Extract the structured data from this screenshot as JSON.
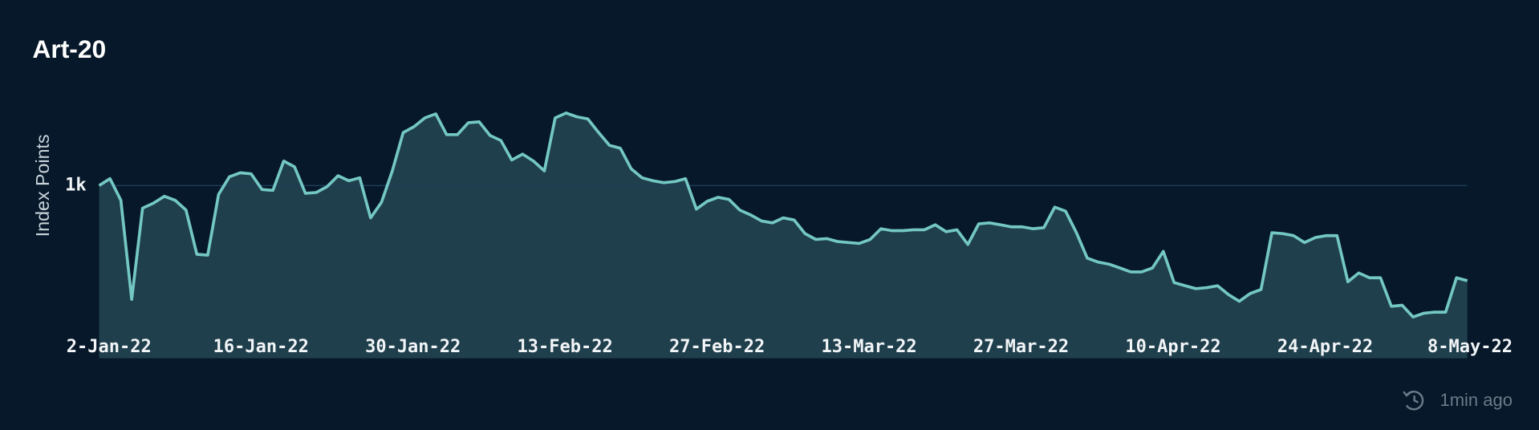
{
  "chart_data": {
    "type": "area",
    "title": "Art-20",
    "y_label": "Index Points",
    "footer": "1min ago",
    "color": "#74c8c3",
    "fill": "#1f3f4c",
    "grid": true,
    "ylim": [
      0,
      1550
    ],
    "yticks": [
      {
        "value": 1000,
        "label": "1k"
      }
    ],
    "xlim": [
      "2022-01-02",
      "2022-05-08"
    ],
    "xticks": [
      {
        "value": "2022-01-02",
        "label": "2-Jan-22"
      },
      {
        "value": "2022-01-16",
        "label": "16-Jan-22"
      },
      {
        "value": "2022-01-30",
        "label": "30-Jan-22"
      },
      {
        "value": "2022-02-13",
        "label": "13-Feb-22"
      },
      {
        "value": "2022-02-27",
        "label": "27-Feb-22"
      },
      {
        "value": "2022-03-13",
        "label": "13-Mar-22"
      },
      {
        "value": "2022-03-27",
        "label": "27-Mar-22"
      },
      {
        "value": "2022-04-10",
        "label": "10-Apr-22"
      },
      {
        "value": "2022-04-24",
        "label": "24-Apr-22"
      },
      {
        "value": "2022-05-08",
        "label": "8-May-22"
      }
    ],
    "x": [
      "2022-01-02",
      "2022-01-03",
      "2022-01-04",
      "2022-01-05",
      "2022-01-06",
      "2022-01-07",
      "2022-01-08",
      "2022-01-09",
      "2022-01-10",
      "2022-01-11",
      "2022-01-12",
      "2022-01-13",
      "2022-01-14",
      "2022-01-15",
      "2022-01-16",
      "2022-01-17",
      "2022-01-18",
      "2022-01-19",
      "2022-01-20",
      "2022-01-21",
      "2022-01-22",
      "2022-01-23",
      "2022-01-24",
      "2022-01-25",
      "2022-01-26",
      "2022-01-27",
      "2022-01-28",
      "2022-01-29",
      "2022-01-30",
      "2022-01-31",
      "2022-02-01",
      "2022-02-02",
      "2022-02-03",
      "2022-02-04",
      "2022-02-05",
      "2022-02-06",
      "2022-02-07",
      "2022-02-08",
      "2022-02-09",
      "2022-02-10",
      "2022-02-11",
      "2022-02-12",
      "2022-02-13",
      "2022-02-14",
      "2022-02-15",
      "2022-02-16",
      "2022-02-17",
      "2022-02-18",
      "2022-02-19",
      "2022-02-20",
      "2022-02-21",
      "2022-02-22",
      "2022-02-23",
      "2022-02-24",
      "2022-02-25",
      "2022-02-26",
      "2022-02-27",
      "2022-02-28",
      "2022-03-01",
      "2022-03-02",
      "2022-03-03",
      "2022-03-04",
      "2022-03-05",
      "2022-03-06",
      "2022-03-07",
      "2022-03-08",
      "2022-03-09",
      "2022-03-10",
      "2022-03-11",
      "2022-03-12",
      "2022-03-13",
      "2022-03-14",
      "2022-03-15",
      "2022-03-16",
      "2022-03-17",
      "2022-03-18",
      "2022-03-19",
      "2022-03-20",
      "2022-03-21",
      "2022-03-22",
      "2022-03-23",
      "2022-03-24",
      "2022-03-25",
      "2022-03-26",
      "2022-03-27",
      "2022-03-28",
      "2022-03-29",
      "2022-03-30",
      "2022-03-31",
      "2022-04-01",
      "2022-04-02",
      "2022-04-03",
      "2022-04-04",
      "2022-04-05",
      "2022-04-06",
      "2022-04-07",
      "2022-04-08",
      "2022-04-09",
      "2022-04-10",
      "2022-04-11",
      "2022-04-12",
      "2022-04-13",
      "2022-04-14",
      "2022-04-15",
      "2022-04-16",
      "2022-04-17",
      "2022-04-18",
      "2022-04-19",
      "2022-04-20",
      "2022-04-21",
      "2022-04-22",
      "2022-04-23",
      "2022-04-24",
      "2022-04-25",
      "2022-04-26",
      "2022-04-27",
      "2022-04-28",
      "2022-04-29",
      "2022-04-30",
      "2022-05-01",
      "2022-05-02",
      "2022-05-03",
      "2022-05-04",
      "2022-05-05",
      "2022-05-06",
      "2022-05-07",
      "2022-05-08"
    ],
    "values": [
      1000,
      1040,
      915,
      341,
      869,
      898,
      938,
      915,
      858,
      602,
      597,
      949,
      1051,
      1074,
      1068,
      977,
      972,
      1142,
      1108,
      955,
      960,
      994,
      1057,
      1028,
      1045,
      813,
      903,
      1085,
      1307,
      1341,
      1392,
      1415,
      1295,
      1295,
      1364,
      1369,
      1290,
      1261,
      1148,
      1182,
      1142,
      1085,
      1392,
      1420,
      1398,
      1386,
      1307,
      1233,
      1216,
      1097,
      1045,
      1028,
      1017,
      1023,
      1040,
      864,
      909,
      932,
      920,
      858,
      830,
      795,
      784,
      813,
      801,
      722,
      688,
      693,
      676,
      670,
      665,
      688,
      750,
      739,
      739,
      744,
      744,
      773,
      733,
      744,
      659,
      778,
      784,
      773,
      761,
      761,
      750,
      756,
      875,
      852,
      727,
      580,
      557,
      545,
      523,
      500,
      500,
      523,
      619,
      438,
      420,
      403,
      409,
      420,
      369,
      330,
      375,
      398,
      727,
      722,
      710,
      670,
      699,
      710,
      710,
      443,
      494,
      466,
      466,
      301,
      307,
      239,
      261,
      267,
      267,
      466,
      449
    ]
  }
}
